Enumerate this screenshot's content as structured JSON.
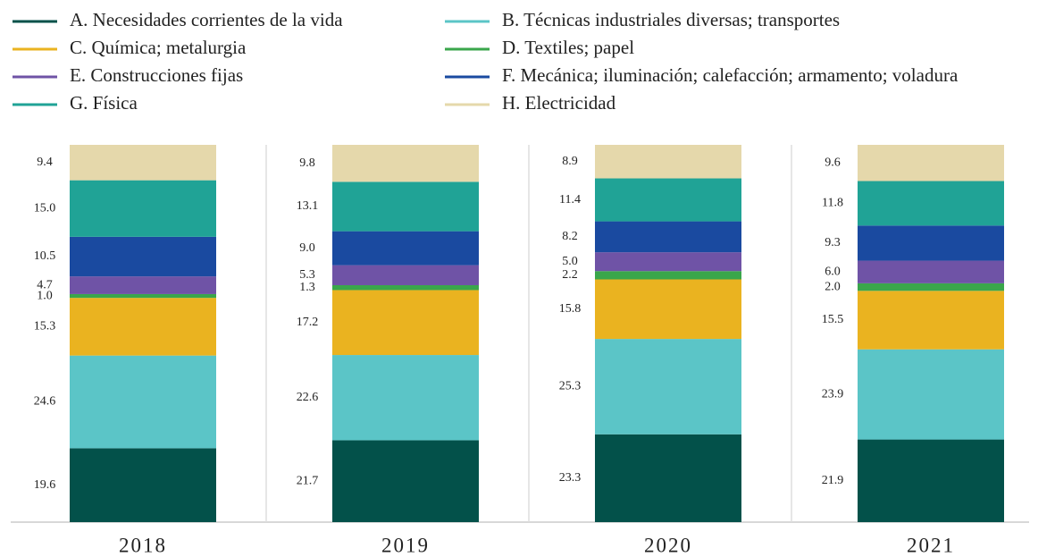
{
  "chart_data": {
    "type": "stacked_bar",
    "categories": [
      "2018",
      "2019",
      "2020",
      "2021"
    ],
    "series": [
      {
        "name": "A. Necesidades corrientes de la vida",
        "color": "#03514a",
        "values": [
          19.6,
          21.7,
          23.3,
          21.9
        ]
      },
      {
        "name": "B. Técnicas industriales diversas; transportes",
        "color": "#5bc5c7",
        "values": [
          24.6,
          22.6,
          25.3,
          23.9
        ]
      },
      {
        "name": "C. Química; metalurgia",
        "color": "#eab320",
        "values": [
          15.3,
          17.2,
          15.8,
          15.5
        ]
      },
      {
        "name": "D. Textiles; papel",
        "color": "#3aa64b",
        "values": [
          1.0,
          1.3,
          2.2,
          2.0
        ]
      },
      {
        "name": "E. Construcciones fijas",
        "color": "#6f53a6",
        "values": [
          4.7,
          5.3,
          5.0,
          6.0
        ]
      },
      {
        "name": "F. Mecánica; iluminación; calefacción; armamento; voladura",
        "color": "#1a4aa0",
        "values": [
          10.5,
          9.0,
          8.2,
          9.3
        ]
      },
      {
        "name": "G. Física",
        "color": "#20a396",
        "values": [
          15.0,
          13.1,
          11.4,
          11.8
        ]
      },
      {
        "name": "H. Electricidad",
        "color": "#e5d8ab",
        "values": [
          9.4,
          9.8,
          8.9,
          9.6
        ]
      }
    ],
    "value_labels": [
      [
        "19.6",
        "21.7",
        "23.3",
        "21.9"
      ],
      [
        "24.6",
        "22.6",
        "25.3",
        "23.9"
      ],
      [
        "15.3",
        "17.2",
        "15.8",
        "15.5"
      ],
      [
        "1.0",
        "1.3",
        "2.2",
        "2.0"
      ],
      [
        "4.7",
        "5.3",
        "5.0",
        "6.0"
      ],
      [
        "10.5",
        "9.0",
        "8.2",
        "9.3"
      ],
      [
        "15.0",
        "13.1",
        "11.4",
        "11.8"
      ],
      [
        "9.4",
        "9.8",
        "8.9",
        "9.6"
      ]
    ]
  }
}
